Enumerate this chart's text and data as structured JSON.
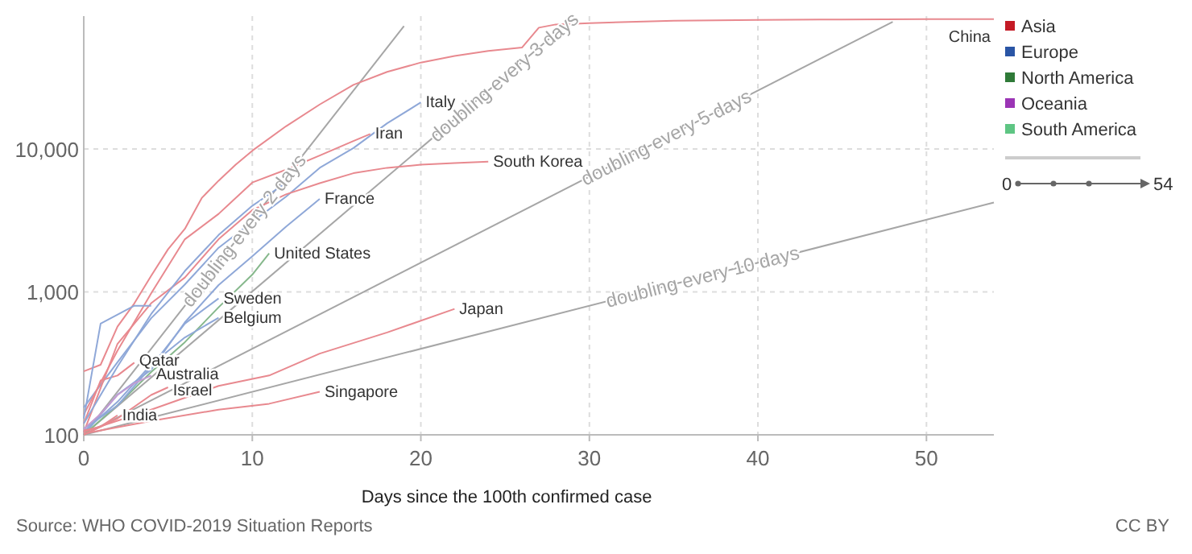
{
  "chart_data": {
    "type": "line",
    "xlabel": "Days since the 100th confirmed case",
    "xlim": [
      0,
      54
    ],
    "xticks": [
      0,
      10,
      20,
      30,
      40,
      50
    ],
    "ylim": [
      100,
      85000
    ],
    "yticks": [
      {
        "value": 100,
        "label": "100"
      },
      {
        "value": 1000,
        "label": "1,000"
      },
      {
        "value": 10000,
        "label": "10,000"
      }
    ],
    "log": "y",
    "grid": true,
    "legend": "top right",
    "series": [
      {
        "name": "doubling every 2 days",
        "color": "#a6a6a6",
        "x": [
          0,
          19
        ],
        "values": [
          100,
          72400
        ]
      },
      {
        "name": "doubling every 3 days",
        "color": "#a6a6a6",
        "x": [
          0,
          29
        ],
        "values": [
          100,
          81200
        ]
      },
      {
        "name": "doubling every 5 days",
        "color": "#a6a6a6",
        "x": [
          0,
          48
        ],
        "values": [
          100,
          77600
        ]
      },
      {
        "name": "doubling every 10 days",
        "color": "#a6a6a6",
        "x": [
          0,
          54
        ],
        "values": [
          100,
          4220
        ]
      },
      {
        "name": "China",
        "color": "#e8898f",
        "x": [
          0,
          1,
          2,
          3,
          4,
          5,
          6,
          7,
          8,
          9,
          10,
          12,
          14,
          16,
          18,
          20,
          22,
          24,
          26,
          27,
          28,
          30,
          35,
          40,
          45,
          50,
          54
        ],
        "values": [
          278,
          309,
          571,
          830,
          1297,
          1985,
          2761,
          4537,
          5997,
          7736,
          9720,
          14411,
          20471,
          28060,
          34598,
          40235,
          44730,
          48548,
          51174,
          70548,
          74280,
          76000,
          79000,
          80000,
          80500,
          81000,
          81000
        ]
      },
      {
        "name": "Italy",
        "color": "#8fa8d8",
        "x": [
          0,
          2,
          4,
          6,
          8,
          10,
          12,
          14,
          16,
          18,
          20
        ],
        "values": [
          155,
          322,
          655,
          1128,
          2036,
          3089,
          4636,
          7375,
          10149,
          15113,
          21157
        ]
      },
      {
        "name": "Iran",
        "color": "#e8898f",
        "x": [
          0,
          2,
          4,
          6,
          8,
          10,
          12,
          14,
          16,
          17
        ],
        "values": [
          139,
          388,
          978,
          2336,
          3513,
          5823,
          7161,
          9000,
          11364,
          12729
        ]
      },
      {
        "name": "South Korea",
        "color": "#e8898f",
        "x": [
          0,
          2,
          4,
          6,
          8,
          10,
          12,
          14,
          16,
          18,
          20,
          22,
          24
        ],
        "values": [
          104,
          433,
          833,
          1261,
          2337,
          3736,
          4812,
          5766,
          6767,
          7382,
          7755,
          7979,
          8162
        ]
      },
      {
        "name": "France",
        "color": "#8fa8d8",
        "x": [
          0,
          2,
          4,
          6,
          8,
          10,
          12,
          14
        ],
        "values": [
          100,
          191,
          285,
          613,
          1116,
          1774,
          2860,
          4469
        ]
      },
      {
        "name": "United States",
        "color": "#86b88c",
        "x": [
          0,
          2,
          4,
          6,
          8,
          10,
          11
        ],
        "values": [
          100,
          161,
          275,
          445,
          780,
          1320,
          1860
        ]
      },
      {
        "name": "Sweden",
        "color": "#8fa8d8",
        "x": [
          0,
          2,
          4,
          6,
          8
        ],
        "values": [
          110,
          160,
          300,
          600,
          900
        ]
      },
      {
        "name": "Belgium",
        "color": "#8fa8d8",
        "x": [
          0,
          2,
          4,
          6,
          8
        ],
        "values": [
          105,
          170,
          310,
          480,
          660
        ]
      },
      {
        "name": "Japan",
        "color": "#e8898f",
        "x": [
          0,
          4,
          8,
          11,
          14,
          18,
          22
        ],
        "values": [
          105,
          150,
          220,
          260,
          370,
          520,
          760
        ]
      },
      {
        "name": "Singapore",
        "color": "#e8898f",
        "x": [
          0,
          4,
          8,
          11,
          14
        ],
        "values": [
          102,
          125,
          150,
          165,
          200
        ]
      },
      {
        "name": "Qatar",
        "color": "#e8898f",
        "x": [
          0,
          1,
          2,
          3
        ],
        "values": [
          120,
          240,
          260,
          320
        ]
      },
      {
        "name": "Australia",
        "color": "#c49bd2",
        "x": [
          0,
          1,
          2,
          3,
          4
        ],
        "values": [
          110,
          140,
          190,
          230,
          260
        ]
      },
      {
        "name": "Israel",
        "color": "#e8898f",
        "x": [
          0,
          2,
          4,
          5
        ],
        "values": [
          100,
          130,
          190,
          215
        ]
      },
      {
        "name": "India",
        "color": "#e8898f",
        "x": [
          0,
          1,
          2
        ],
        "values": [
          107,
          114,
          137
        ]
      },
      {
        "color": "#8fa8d8",
        "x": [
          0,
          2,
          4,
          6,
          8,
          10,
          12
        ],
        "values": [
          120,
          300,
          700,
          1400,
          2500,
          4000,
          5800
        ]
      },
      {
        "color": "#8fa8d8",
        "x": [
          0,
          1,
          3,
          4
        ],
        "values": [
          130,
          600,
          800,
          800
        ]
      },
      {
        "name": "Asia",
        "color": "#c41a25",
        "values": [
          null
        ]
      },
      {
        "name": "Europe",
        "color": "#2a55a5",
        "values": [
          null
        ]
      },
      {
        "name": "North America",
        "color": "#2f7a38",
        "values": [
          null
        ]
      },
      {
        "name": "Oceania",
        "color": "#9b35b5",
        "values": [
          null
        ]
      },
      {
        "name": "South America",
        "color": "#5ec583",
        "values": [
          null
        ]
      }
    ],
    "annotations": [
      "Source: WHO COVID-2019 Situation Reports",
      "CC BY",
      "0",
      "54"
    ]
  }
}
